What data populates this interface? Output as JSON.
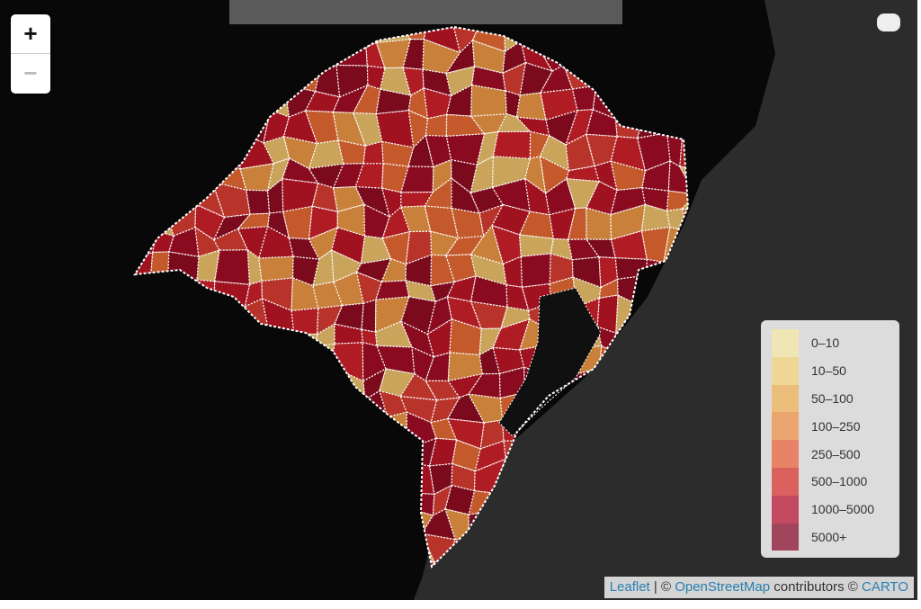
{
  "zoom": {
    "in": "+",
    "out": "−"
  },
  "legend": {
    "items": [
      {
        "label": "0–10",
        "color": "#f3e6ad"
      },
      {
        "label": "10–50",
        "color": "#f1d58a"
      },
      {
        "label": "50–100",
        "color": "#efb86a"
      },
      {
        "label": "100–250",
        "color": "#ed9b5c"
      },
      {
        "label": "250–500",
        "color": "#ea7352"
      },
      {
        "label": "500–1000",
        "color": "#da4b49"
      },
      {
        "label": "1000–5000",
        "color": "#c0304a"
      },
      {
        "label": "5000+",
        "color": "#962a46"
      }
    ]
  },
  "attribution": {
    "leaflet": "Leaflet",
    "sep": " | © ",
    "osm": "OpenStreetMap",
    "mid": " contributors © ",
    "carto": "CARTO"
  }
}
